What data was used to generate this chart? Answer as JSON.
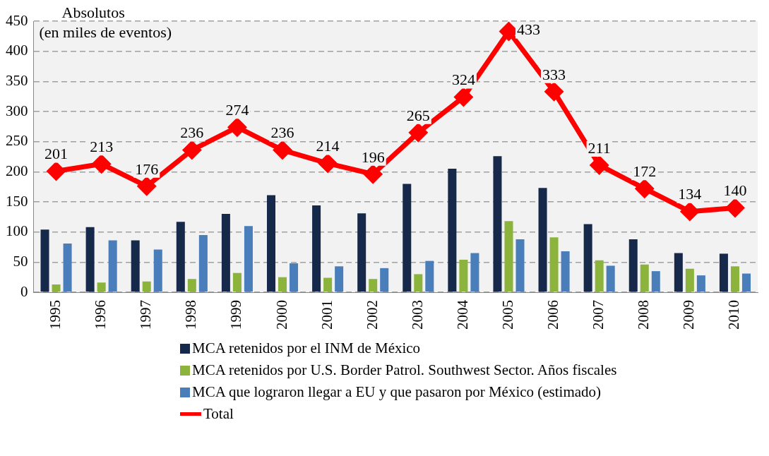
{
  "chart_data": {
    "type": "bar",
    "ylabel": "Absolutos",
    "annotations": [
      "(en miles de eventos)"
    ],
    "categories": [
      "1995",
      "1996",
      "1997",
      "1998",
      "1999",
      "2000",
      "2001",
      "2002",
      "2003",
      "2004",
      "2005",
      "2006",
      "2007",
      "2008",
      "2009",
      "2010"
    ],
    "series": [
      {
        "name": "MCA retenidos por el INM de México",
        "color": "#17294a",
        "values": [
          104,
          108,
          86,
          117,
          130,
          161,
          144,
          131,
          180,
          205,
          226,
          173,
          113,
          88,
          65,
          64
        ]
      },
      {
        "name": "MCA retenidos por U.S. Border Patrol. Southwest Sector.  Años fiscales",
        "color": "#8cb43c",
        "values": [
          13,
          16,
          18,
          22,
          32,
          25,
          24,
          22,
          30,
          54,
          118,
          91,
          53,
          46,
          39,
          43
        ]
      },
      {
        "name": "MCA que lograron llegar a EU y que pasaron por México (estimado)",
        "color": "#4a7ebb",
        "values": [
          81,
          86,
          71,
          95,
          110,
          48,
          43,
          40,
          52,
          65,
          88,
          68,
          44,
          35,
          28,
          31
        ]
      },
      {
        "name": "Total",
        "type": "line",
        "color": "#ff0000",
        "marker": "diamond",
        "values": [
          201,
          213,
          176,
          236,
          274,
          236,
          214,
          196,
          265,
          324,
          433,
          333,
          211,
          172,
          134,
          140
        ],
        "value_labels": [
          "201",
          "213",
          "176",
          "236",
          "274",
          "236",
          "214",
          "196",
          "265",
          "324",
          "433",
          "333",
          "211",
          "172",
          "134",
          "140"
        ]
      }
    ],
    "ylim": [
      0,
      450
    ],
    "yticks": [
      0,
      50,
      100,
      150,
      200,
      250,
      300,
      350,
      400,
      450
    ],
    "grid": "y",
    "legend": "bottom"
  }
}
